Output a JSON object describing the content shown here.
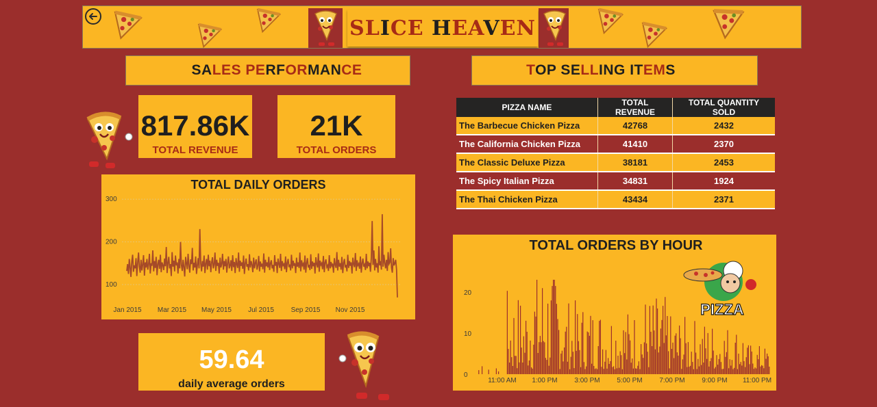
{
  "banner": {
    "title_parts": [
      {
        "text": "SL",
        "color": "#a72b16"
      },
      {
        "text": "I",
        "color": "#1f1f1f"
      },
      {
        "text": "CE ",
        "color": "#a72b16"
      },
      {
        "text": "H",
        "color": "#1f1f1f"
      },
      {
        "text": "EA",
        "color": "#a72b16"
      },
      {
        "text": "V",
        "color": "#1f1f1f"
      },
      {
        "text": "EN",
        "color": "#a72b16"
      }
    ],
    "back_icon": "back-arrow-icon"
  },
  "sales_section": {
    "title_parts": [
      {
        "text": "SA",
        "color": "#1f1f1f"
      },
      {
        "text": "LES PE",
        "color": "#a72b16"
      },
      {
        "text": "RF",
        "color": "#1f1f1f"
      },
      {
        "text": "OR",
        "color": "#a72b16"
      },
      {
        "text": "MAN",
        "color": "#1f1f1f"
      },
      {
        "text": "CE",
        "color": "#a72b16"
      }
    ]
  },
  "top_section": {
    "title_parts": [
      {
        "text": "T",
        "color": "#a72b16"
      },
      {
        "text": "OP SE",
        "color": "#1f1f1f"
      },
      {
        "text": "LL",
        "color": "#a72b16"
      },
      {
        "text": "ING IT",
        "color": "#1f1f1f"
      },
      {
        "text": "EM",
        "color": "#a72b16"
      },
      {
        "text": "S",
        "color": "#1f1f1f"
      }
    ]
  },
  "kpis": {
    "revenue": {
      "value": "817.86K",
      "label": "TOTAL REVENUE"
    },
    "orders": {
      "value": "21K",
      "label": "TOTAL ORDERS"
    },
    "avg": {
      "value": "59.64",
      "label": "daily average orders"
    }
  },
  "top_table": {
    "headers": [
      "PIZZA NAME",
      "TOTAL REVENUE",
      "TOTAL QUANTITY SOLD"
    ],
    "rows": [
      {
        "name": "The Barbecue Chicken Pizza",
        "revenue": "42768",
        "qty": "2432"
      },
      {
        "name": "The California Chicken Pizza",
        "revenue": "41410",
        "qty": "2370"
      },
      {
        "name": "The Classic Deluxe Pizza",
        "revenue": "38181",
        "qty": "2453"
      },
      {
        "name": "The Spicy Italian Pizza",
        "revenue": "34831",
        "qty": "1924"
      },
      {
        "name": "The Thai Chicken Pizza",
        "revenue": "43434",
        "qty": "2371"
      }
    ]
  },
  "pizza_logo_text": "PIZZA",
  "chart_data": [
    {
      "type": "line",
      "title": "TOTAL DAILY ORDERS",
      "x_ticks": [
        "Jan 2015",
        "Mar 2015",
        "May 2015",
        "Jul 2015",
        "Sep 2015",
        "Nov 2015"
      ],
      "y_ticks": [
        100,
        200,
        300
      ],
      "ylim": [
        60,
        310
      ],
      "x_range": [
        "Jan 2015",
        "Dec 2015"
      ],
      "line_color": "#a64a28",
      "grid": true,
      "series": [
        {
          "values": [
            132,
            148,
            125,
            160,
            140,
            118,
            155,
            170,
            130,
            145,
            138,
            162,
            120,
            150,
            175,
            142,
            128,
            158,
            133,
            147,
            169,
            121,
            152,
            140,
            160,
            135,
            148,
            172,
            126,
            150,
            144,
            180,
            131,
            155,
            139,
            165,
            122,
            148,
            158,
            137,
            170,
            129,
            152,
            146,
            134,
            161,
            143,
            188,
            127,
            150,
            165,
            138,
            148,
            120,
            176,
            142,
            156,
            131,
            168,
            145,
            152,
            126,
            160,
            138,
            200,
            147,
            132,
            158,
            141,
            119,
            165,
            150,
            136,
            172,
            144,
            128,
            159,
            148,
            186,
            133,
            151,
            140,
            166,
            125,
            145,
            162,
            138,
            230,
            150,
            131,
            155,
            142,
            168,
            127,
            149,
            160,
            135,
            170,
            143,
            156,
            129,
            152,
            164,
            138,
            147,
            175,
            132,
            158,
            144,
            151,
            126,
            163,
            140,
            148,
            172,
            135,
            155,
            143,
            160,
            128,
            150,
            166,
            138,
            145,
            157,
            132,
            169,
            141,
            153,
            127,
            162,
            147,
            139,
            175,
            130,
            156,
            144,
            152,
            137,
            168,
            125,
            150,
            161,
            142,
            148,
            133,
            171,
            140,
            155,
            146,
            129,
            163,
            138,
            151,
            159,
            135,
            145,
            167,
            131,
            154,
            142,
            149,
            136,
            173,
            128,
            158,
            143,
            152,
            140,
            165,
            134,
            150,
            157,
            138,
            146,
            130,
            169,
            144,
            153,
            127,
            161,
            149,
            139,
            172,
            132,
            155,
            145,
            148,
            136,
            166,
            129,
            151,
            160,
            141,
            147,
            133,
            170,
            138,
            156,
            144,
            150,
            127,
            163,
            142,
            152,
            139,
            175,
            131,
            157,
            145,
            149,
            135,
            168,
            128,
            150,
            162,
            140,
            146,
            134,
            171,
            137,
            154,
            143,
            151,
            126,
            164,
            148,
            140,
            173,
            130,
            156,
            146,
            150,
            136,
            167,
            129,
            152,
            159,
            141,
            145,
            132,
            169,
            138,
            153,
            144,
            149,
            128,
            162,
            147,
            139,
            176,
            133,
            158,
            142,
            150,
            135,
            165,
            127,
            151,
            160,
            140,
            146,
            131,
            170,
            139,
            155,
            144,
            152,
            126,
            163,
            148,
            141,
            174,
            132,
            157,
            145,
            149,
            137,
            166,
            128,
            150,
            161,
            142,
            147,
            134,
            172,
            138,
            154,
            143,
            151,
            130,
            164,
            249,
            146,
            180,
            133,
            160,
            140,
            150,
            128,
            190,
            145,
            155,
            135,
            265,
            142,
            170,
            150,
            138,
            158,
            132,
            176,
            148,
            152,
            185,
            140,
            128,
            162,
            145,
            150,
            158,
            135,
            70
          ]
        }
      ]
    },
    {
      "type": "bar",
      "title": "TOTAL ORDERS BY HOUR",
      "x_ticks": [
        "11:00 AM",
        "1:00 PM",
        "3:00 PM",
        "5:00 PM",
        "7:00 PM",
        "9:00 PM",
        "11:00 PM"
      ],
      "y_ticks": [
        0,
        10,
        20
      ],
      "ylim": [
        0,
        24
      ],
      "bar_color": "#9b2e2c",
      "grid": false,
      "peaks": [
        {
          "x": "9:00 AM",
          "y": 4
        },
        {
          "x": "10:00 AM",
          "y": 2
        },
        {
          "x": "12:00 PM",
          "y": 14
        },
        {
          "x": "1:00 PM",
          "y": 22
        },
        {
          "x": "2:00 PM",
          "y": 15
        },
        {
          "x": "6:00 PM",
          "y": 13
        },
        {
          "x": "8:00 PM",
          "y": 15
        },
        {
          "x": "11:00 PM",
          "y": 2
        }
      ]
    }
  ]
}
